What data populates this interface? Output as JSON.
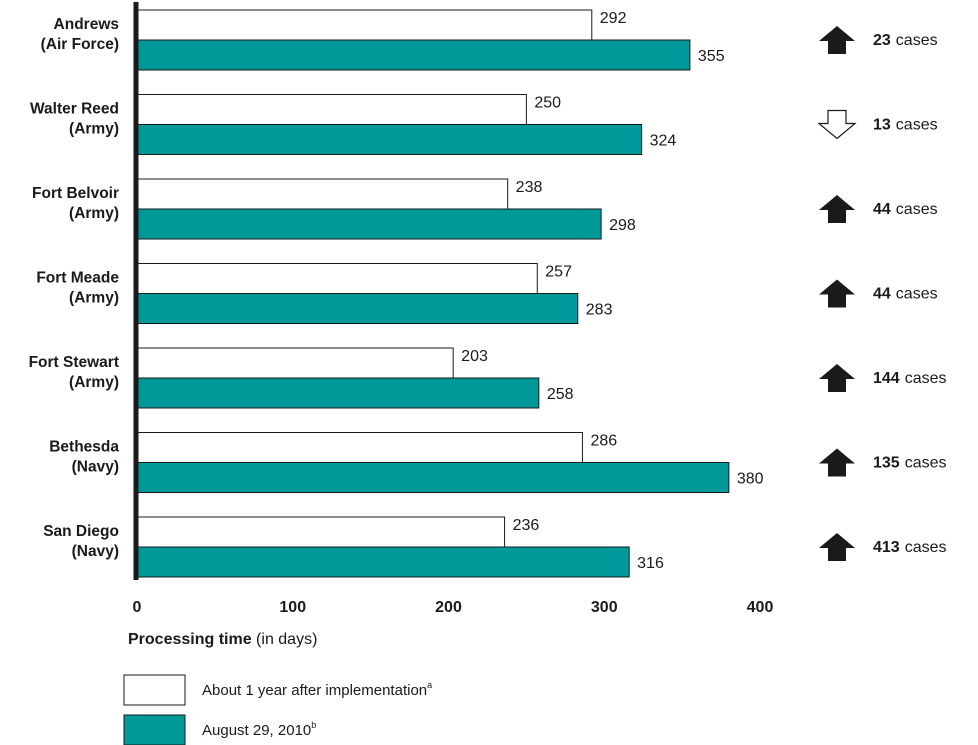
{
  "chart_data": {
    "type": "bar",
    "orientation": "horizontal",
    "categories": [
      [
        "Andrews",
        "(Air Force)"
      ],
      [
        "Walter Reed",
        "(Army)"
      ],
      [
        "Fort Belvoir",
        "(Army)"
      ],
      [
        "Fort Meade",
        "(Army)"
      ],
      [
        "Fort Stewart",
        "(Army)"
      ],
      [
        "Bethesda",
        "(Navy)"
      ],
      [
        "San Diego",
        "(Navy)"
      ]
    ],
    "series": [
      {
        "name": "About 1 year after implementation",
        "footnote": "a",
        "color": "#ffffff",
        "values": [
          292,
          250,
          238,
          257,
          203,
          286,
          236
        ]
      },
      {
        "name": "August 29, 2010",
        "footnote": "b",
        "color": "#009999",
        "values": [
          355,
          324,
          298,
          283,
          258,
          380,
          316
        ]
      }
    ],
    "xlim": [
      0,
      400
    ],
    "xticks": [
      0,
      100,
      200,
      300,
      400
    ],
    "xlabel_bold": "Processing time",
    "xlabel_rest": " (in days)",
    "legend_position": "bottom-left",
    "case_changes": [
      {
        "direction": "up",
        "count": "23",
        "unit": "cases"
      },
      {
        "direction": "down",
        "count": "13",
        "unit": "cases"
      },
      {
        "direction": "up",
        "count": "44",
        "unit": "cases"
      },
      {
        "direction": "up",
        "count": "44",
        "unit": "cases"
      },
      {
        "direction": "up",
        "count": "144",
        "unit": "cases"
      },
      {
        "direction": "up",
        "count": "135",
        "unit": "cases"
      },
      {
        "direction": "up",
        "count": "413",
        "unit": "cases"
      }
    ]
  }
}
